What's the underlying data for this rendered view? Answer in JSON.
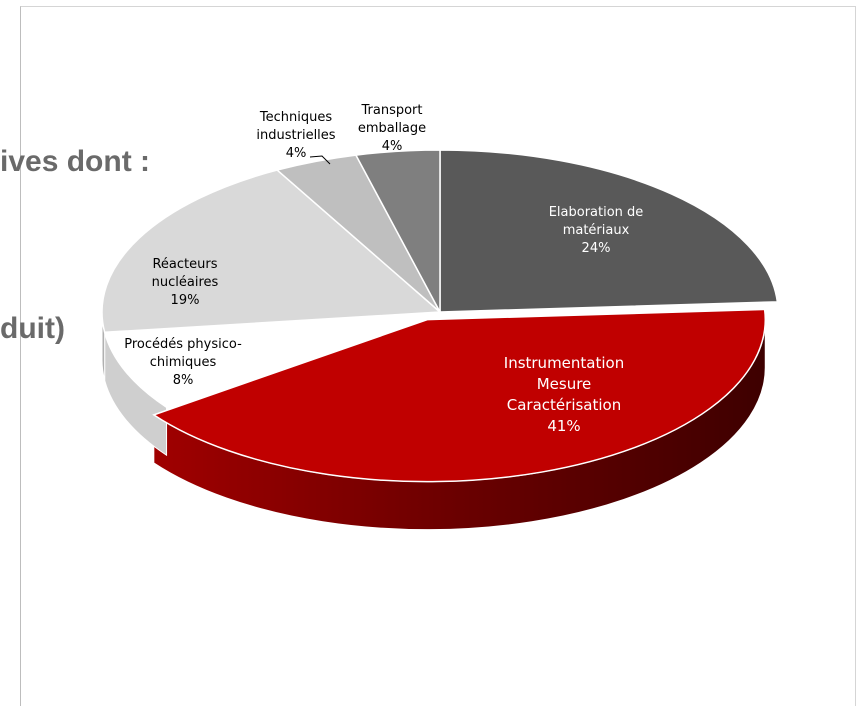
{
  "background_text": {
    "line1": "ives dont :",
    "line2": "duit)"
  },
  "chart_data": {
    "type": "pie",
    "style": "3d-exploded-pie",
    "title": "",
    "legend": "none",
    "slices": [
      {
        "label_lines": [
          "Elaboration de",
          "matériaux"
        ],
        "value": 24,
        "value_label": "24%",
        "color": "#595959",
        "side_color": "#3a3a3a",
        "text_color": "#ffffff"
      },
      {
        "label_lines": [
          "Instrumentation",
          "Mesure",
          "Caractérisation"
        ],
        "value": 41,
        "value_label": "41%",
        "color": "#c00000",
        "side_color": "#7a0000",
        "text_color": "#ffffff"
      },
      {
        "label_lines": [
          "Procédés physico-",
          "chimiques"
        ],
        "value": 8,
        "value_label": "8%",
        "color": "#ffffff",
        "side_color": "#cfcfcf",
        "text_color": "#000000"
      },
      {
        "label_lines": [
          "Réacteurs",
          "nucléaires"
        ],
        "value": 19,
        "value_label": "19%",
        "color": "#d9d9d9",
        "side_color": "#b0b0b0",
        "text_color": "#000000"
      },
      {
        "label_lines": [
          "Techniques",
          "industrielles"
        ],
        "value": 4,
        "value_label": "4%",
        "color": "#bfbfbf",
        "side_color": "#939393",
        "text_color": "#000000"
      },
      {
        "label_lines": [
          "Transport",
          "emballage"
        ],
        "value": 4,
        "value_label": "4%",
        "color": "#7f7f7f",
        "side_color": "#555555",
        "text_color": "#000000"
      }
    ]
  }
}
